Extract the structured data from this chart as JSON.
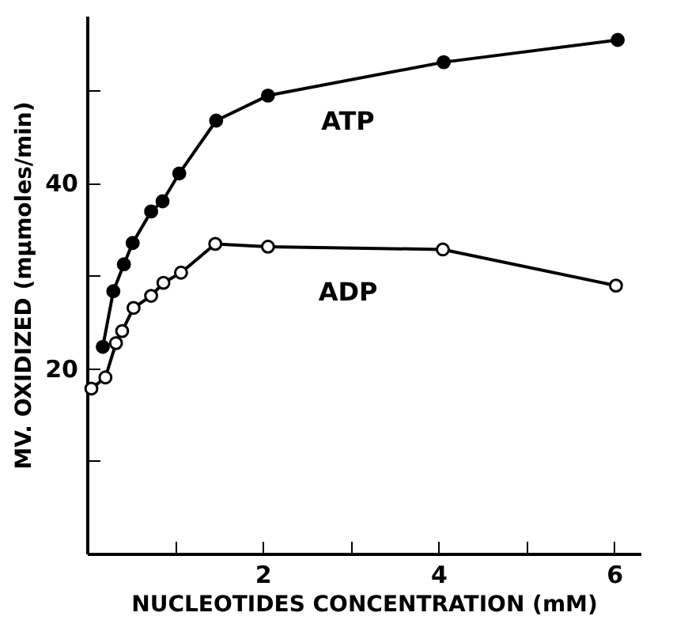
{
  "chart_data": {
    "type": "line",
    "xlabel": "NUCLEOTIDES CONCENTRATION (mM)",
    "ylabel": "MV. OXIDIZED (mµmoles/min)",
    "xlim": [
      0,
      6.3
    ],
    "ylim": [
      0,
      58
    ],
    "xticks": [
      {
        "value": 1,
        "label": null
      },
      2,
      {
        "value": 3,
        "label": null
      },
      4,
      {
        "value": 5,
        "label": null
      },
      6
    ],
    "yticks": [
      {
        "value": 10,
        "label": null
      },
      20,
      {
        "value": 30,
        "label": null
      },
      40,
      {
        "value": 50,
        "label": null
      }
    ],
    "marker": "circle",
    "grid": false,
    "series": [
      {
        "name": "ATP",
        "color": "#000000",
        "x": [
          0.18,
          0.3,
          0.42,
          0.52,
          0.73,
          0.86,
          1.05,
          1.47,
          2.06,
          4.06,
          6.04
        ],
        "values": [
          22.3,
          28.3,
          31.2,
          33.5,
          36.9,
          38.0,
          41.0,
          46.7,
          49.4,
          53.0,
          55.4
        ]
      },
      {
        "name": "ADP",
        "color": "#000000",
        "x": [
          0.05,
          0.21,
          0.33,
          0.4,
          0.53,
          0.73,
          0.87,
          1.07,
          1.46,
          2.06,
          4.05,
          6.02
        ],
        "values": [
          17.8,
          19.0,
          22.7,
          24.0,
          26.5,
          27.8,
          29.2,
          30.3,
          33.4,
          33.1,
          32.8,
          28.9
        ]
      }
    ]
  }
}
